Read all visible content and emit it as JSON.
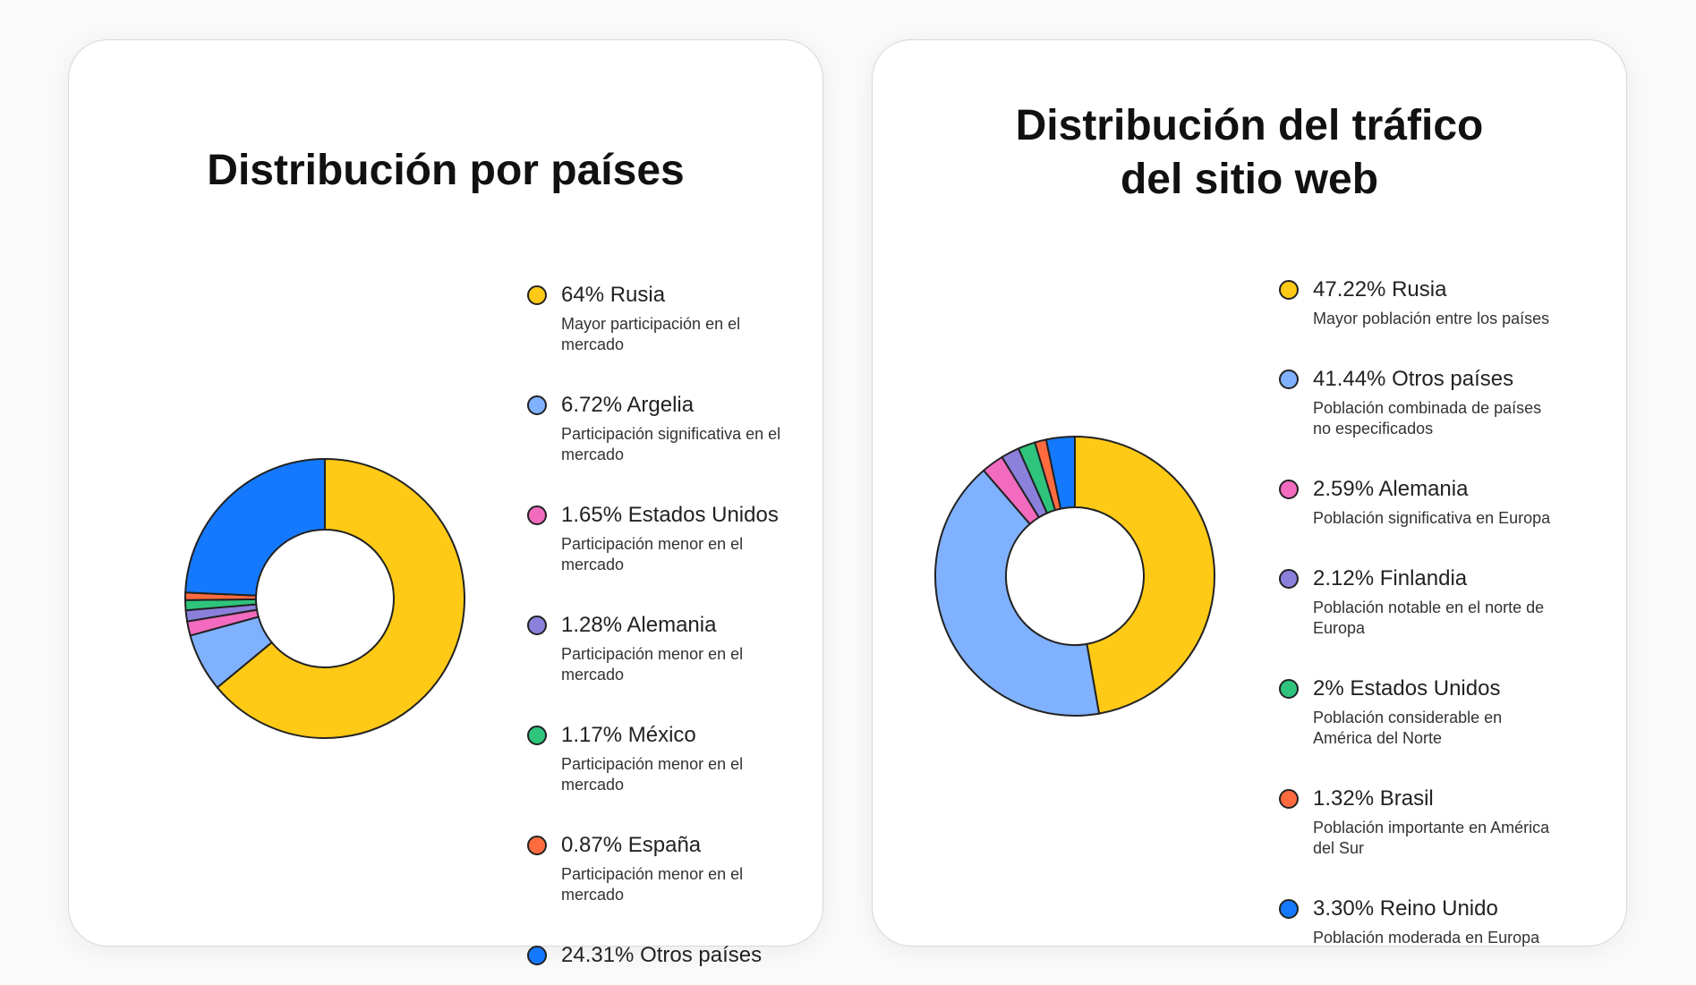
{
  "chart_data": [
    {
      "type": "pie",
      "title": "Distribución por países",
      "categories": [
        "Rusia",
        "Argelia",
        "Estados Unidos",
        "Alemania",
        "México",
        "España",
        "Otros países"
      ],
      "values": [
        64,
        6.72,
        1.65,
        1.28,
        1.17,
        0.87,
        24.31
      ],
      "value_labels": [
        "64%",
        "6.72%",
        "1.65%",
        "1.28%",
        "1.17%",
        "0.87%",
        "24.31%"
      ],
      "descriptions": [
        "Mayor participación en el mercado",
        "Participación significativa en el mercado",
        "Participación menor en el mercado",
        "Participación menor en el mercado",
        "Participación menor en el mercado",
        "Participación menor en el mercado",
        null
      ],
      "colors": [
        "#ffca16",
        "#80b1ff",
        "#f26bbf",
        "#8b80db",
        "#2ec47c",
        "#ff6b3f",
        "#1479ff"
      ]
    },
    {
      "type": "pie",
      "title": "Distribución del tráfico del sitio web",
      "categories": [
        "Rusia",
        "Otros países",
        "Alemania",
        "Finlandia",
        "Estados Unidos",
        "Brasil",
        "Reino Unido"
      ],
      "values": [
        47.22,
        41.44,
        2.59,
        2.12,
        2,
        1.32,
        3.3
      ],
      "value_labels": [
        "47.22%",
        "41.44%",
        "2.59%",
        "2.12%",
        "2%",
        "1.32%",
        "3.30%"
      ],
      "descriptions": [
        "Mayor población entre los países",
        "Población combinada de países no especificados",
        "Población significativa en Europa",
        "Población notable en el norte de Europa",
        "Población considerable en América del Norte",
        "Población importante en América del Sur",
        "Población moderada en Europa"
      ],
      "colors": [
        "#ffca16",
        "#80b1ff",
        "#f26bbf",
        "#8b80db",
        "#2ec47c",
        "#ff6b3f",
        "#1479ff"
      ]
    }
  ]
}
